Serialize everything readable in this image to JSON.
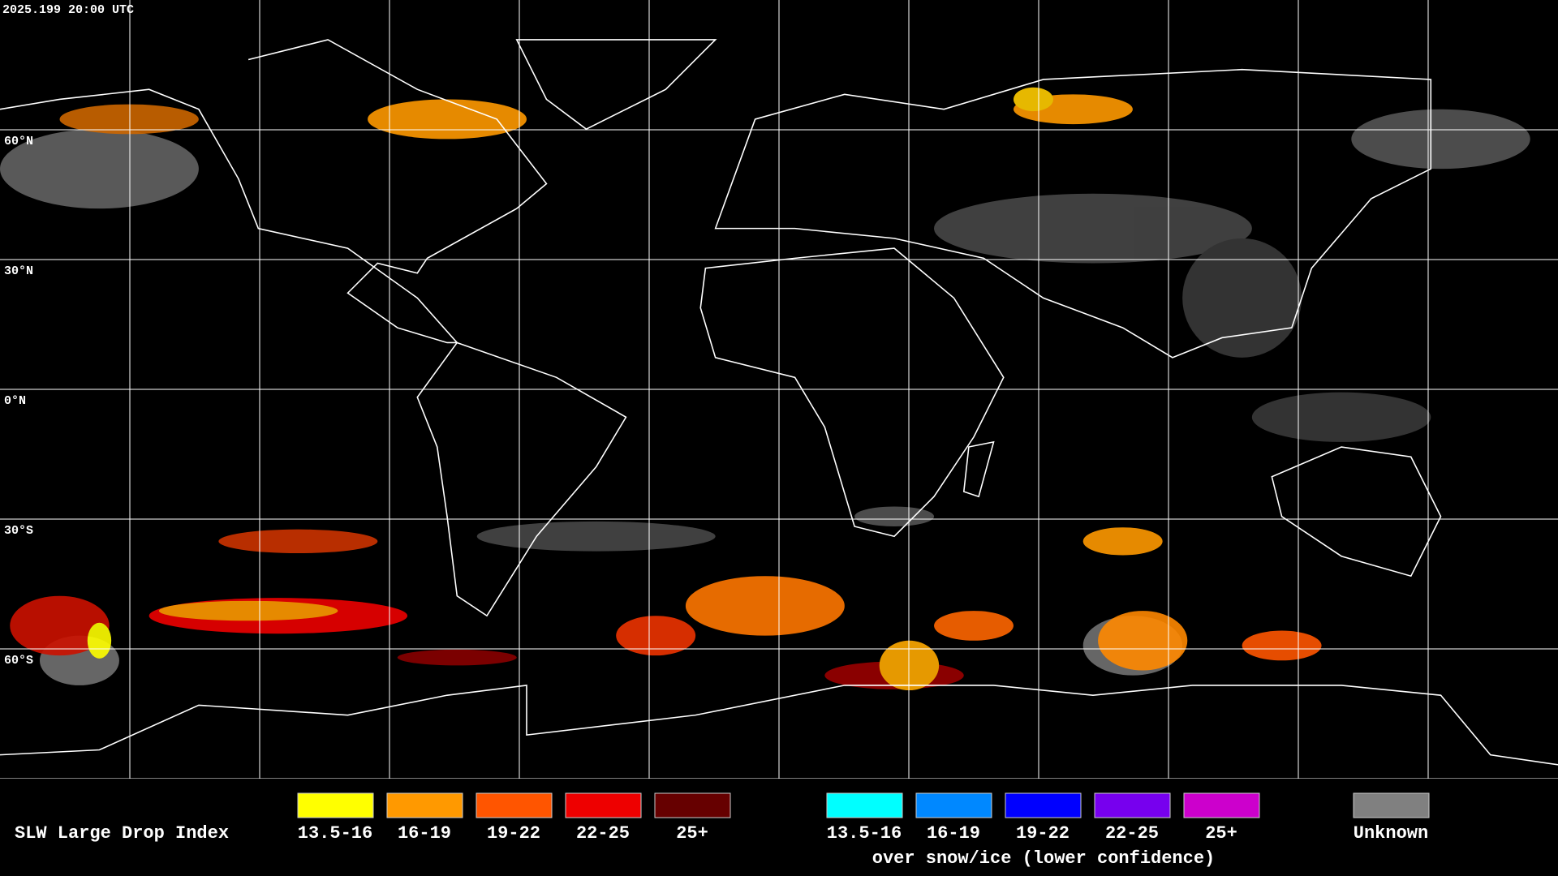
{
  "header": {
    "timestamp": "2025.199 20:00 UTC"
  },
  "map": {
    "latitude_labels": [
      "60°N",
      "30°N",
      "0°N",
      "30°S",
      "60°S"
    ]
  },
  "legend": {
    "title": "SLW Large Drop Index",
    "items": [
      {
        "label": "13.5-16",
        "color": "#ffff00"
      },
      {
        "label": "16-19",
        "color": "#ff9900"
      },
      {
        "label": "19-22",
        "color": "#ff5500"
      },
      {
        "label": "22-25",
        "color": "#ee0000"
      },
      {
        "label": "25+",
        "color": "#660000"
      }
    ],
    "snow_items": [
      {
        "label": "13.5-16",
        "color": "#00ffff"
      },
      {
        "label": "16-19",
        "color": "#0088ff"
      },
      {
        "label": "19-22",
        "color": "#0000ff"
      },
      {
        "label": "22-25",
        "color": "#7700ee"
      },
      {
        "label": "25+",
        "color": "#cc00cc"
      }
    ],
    "snow_caption": "over snow/ice (lower confidence)",
    "unknown": {
      "label": "Unknown",
      "color": "#808080"
    }
  }
}
